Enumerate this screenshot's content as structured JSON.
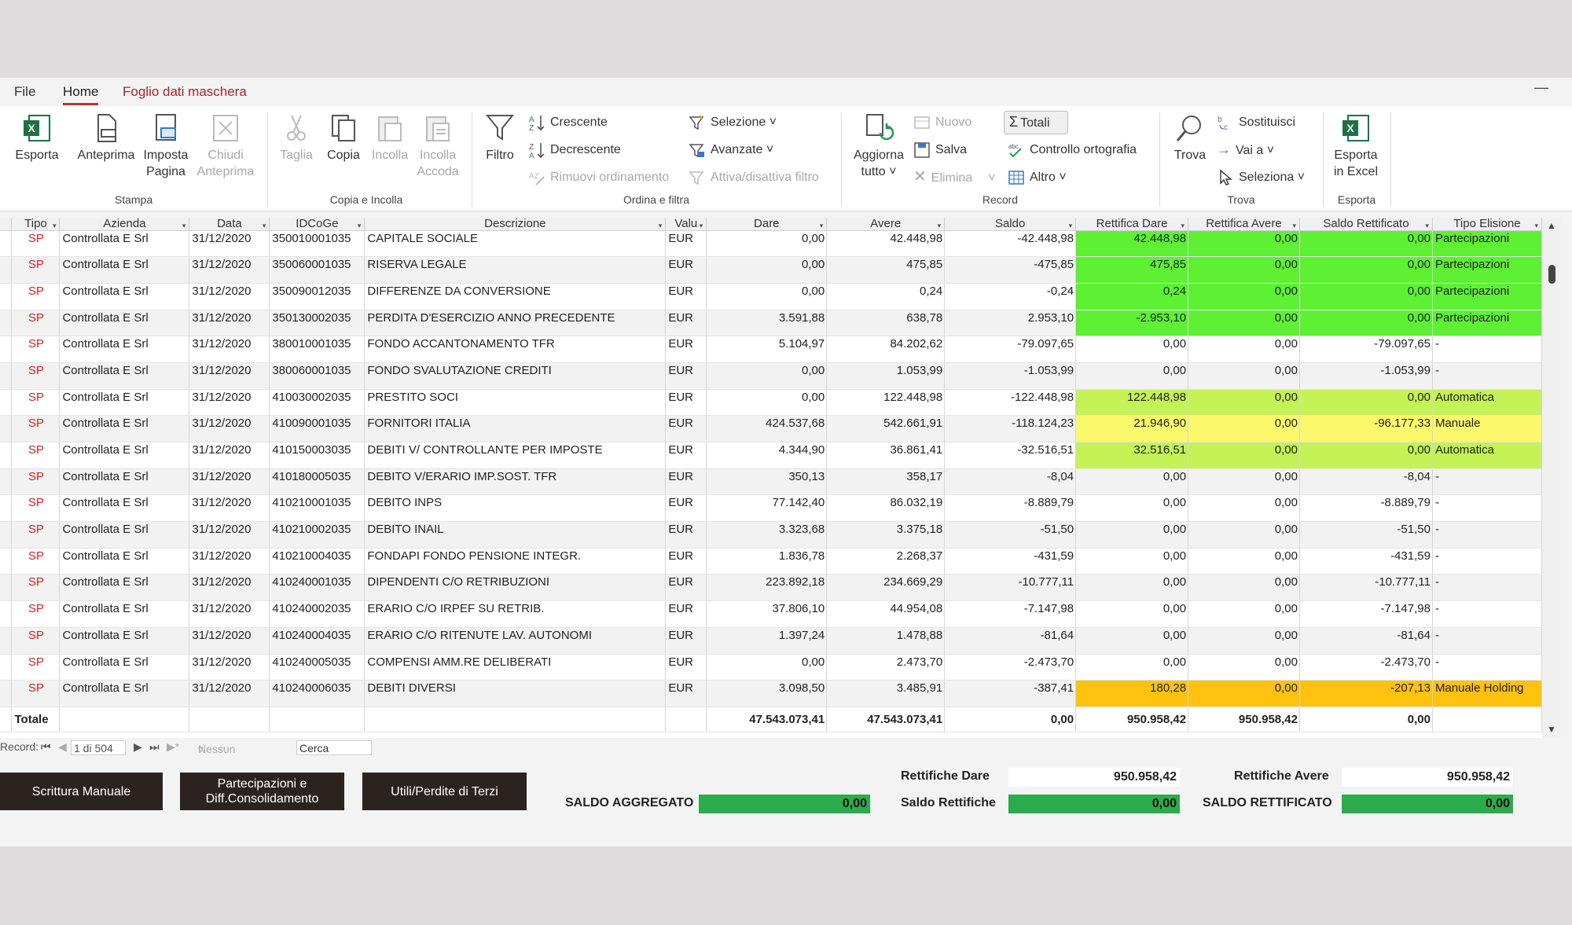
{
  "menubar": {
    "file": "File",
    "home": "Home",
    "foglio": "Foglio dati maschera"
  },
  "ribbon": {
    "stampa": {
      "group": "Stampa",
      "esporta": "Esporta",
      "anteprima": "Anteprima",
      "imposta": "Imposta Pagina",
      "chiudi": "Chiudi Anteprima"
    },
    "copia": {
      "group": "Copia e Incolla",
      "taglia": "Taglia",
      "copia": "Copia",
      "incolla": "Incolla",
      "incolla_accoda": "Incolla Accoda"
    },
    "ordina": {
      "group": "Ordina e filtra",
      "filtro": "Filtro",
      "crescente": "Crescente",
      "decrescente": "Decrescente",
      "rimuovi": "Rimuovi ordinamento",
      "selezione": "Selezione",
      "avanzate": "Avanzate",
      "attiva": "Attiva/disattiva filtro"
    },
    "record": {
      "group": "Record",
      "aggiorna": "Aggiorna tutto",
      "nuovo": "Nuovo",
      "salva": "Salva",
      "elimina": "Elimina",
      "totali": "Totali",
      "controllo": "Controllo ortografia",
      "altro": "Altro"
    },
    "trova": {
      "group": "Trova",
      "trova": "Trova",
      "sostituisci": "Sostituisci",
      "vai": "Vai a",
      "seleziona": "Seleziona"
    },
    "esporta": {
      "group": "Esporta",
      "excel": "Esporta in Excel"
    }
  },
  "grid": {
    "columns": [
      "Tipo",
      "Azienda",
      "Data",
      "IDCoGe",
      "Descrizione",
      "Valu",
      "Dare",
      "Avere",
      "Saldo",
      "Rettifica Dare",
      "Rettifica Avere",
      "Saldo Rettificato",
      "Tipo Elisione"
    ],
    "rows": [
      [
        "SP",
        "Controllata E Srl",
        "31/12/2020",
        "350010001035",
        "CAPITALE SOCIALE",
        "EUR",
        "0,00",
        "42.448,98",
        "-42.448,98",
        "42.448,98",
        "0,00",
        "0,00",
        "Partecipazioni"
      ],
      [
        "SP",
        "Controllata E Srl",
        "31/12/2020",
        "350060001035",
        "RISERVA LEGALE",
        "EUR",
        "0,00",
        "475,85",
        "-475,85",
        "475,85",
        "0,00",
        "0,00",
        "Partecipazioni"
      ],
      [
        "SP",
        "Controllata E Srl",
        "31/12/2020",
        "350090012035",
        "DIFFERENZE DA CONVERSIONE",
        "EUR",
        "0,00",
        "0,24",
        "-0,24",
        "0,24",
        "0,00",
        "0,00",
        "Partecipazioni"
      ],
      [
        "SP",
        "Controllata E Srl",
        "31/12/2020",
        "350130002035",
        "PERDITA D'ESERCIZIO ANNO PRECEDENTE",
        "EUR",
        "3.591,88",
        "638,78",
        "2.953,10",
        "-2.953,10",
        "0,00",
        "0,00",
        "Partecipazioni"
      ],
      [
        "SP",
        "Controllata E Srl",
        "31/12/2020",
        "380010001035",
        "FONDO ACCANTONAMENTO TFR",
        "EUR",
        "5.104,97",
        "84.202,62",
        "-79.097,65",
        "0,00",
        "0,00",
        "-79.097,65",
        "-"
      ],
      [
        "SP",
        "Controllata E Srl",
        "31/12/2020",
        "380060001035",
        "FONDO SVALUTAZIONE CREDITI",
        "EUR",
        "0,00",
        "1.053,99",
        "-1.053,99",
        "0,00",
        "0,00",
        "-1.053,99",
        "-"
      ],
      [
        "SP",
        "Controllata E Srl",
        "31/12/2020",
        "410030002035",
        "PRESTITO SOCI",
        "EUR",
        "0,00",
        "122.448,98",
        "-122.448,98",
        "122.448,98",
        "0,00",
        "0,00",
        "Automatica"
      ],
      [
        "SP",
        "Controllata E Srl",
        "31/12/2020",
        "410090001035",
        "FORNITORI ITALIA",
        "EUR",
        "424.537,68",
        "542.661,91",
        "-118.124,23",
        "21.946,90",
        "0,00",
        "-96.177,33",
        "Manuale"
      ],
      [
        "SP",
        "Controllata E Srl",
        "31/12/2020",
        "410150003035",
        "DEBITI V/ CONTROLLANTE PER IMPOSTE",
        "EUR",
        "4.344,90",
        "36.861,41",
        "-32.516,51",
        "32.516,51",
        "0,00",
        "0,00",
        "Automatica"
      ],
      [
        "SP",
        "Controllata E Srl",
        "31/12/2020",
        "410180005035",
        "DEBITO V/ERARIO IMP.SOST. TFR",
        "EUR",
        "350,13",
        "358,17",
        "-8,04",
        "0,00",
        "0,00",
        "-8,04",
        "-"
      ],
      [
        "SP",
        "Controllata E Srl",
        "31/12/2020",
        "410210001035",
        "DEBITO INPS",
        "EUR",
        "77.142,40",
        "86.032,19",
        "-8.889,79",
        "0,00",
        "0,00",
        "-8.889,79",
        "-"
      ],
      [
        "SP",
        "Controllata E Srl",
        "31/12/2020",
        "410210002035",
        "DEBITO INAIL",
        "EUR",
        "3.323,68",
        "3.375,18",
        "-51,50",
        "0,00",
        "0,00",
        "-51,50",
        "-"
      ],
      [
        "SP",
        "Controllata E Srl",
        "31/12/2020",
        "410210004035",
        "FONDAPI FONDO PENSIONE INTEGR.",
        "EUR",
        "1.836,78",
        "2.268,37",
        "-431,59",
        "0,00",
        "0,00",
        "-431,59",
        "-"
      ],
      [
        "SP",
        "Controllata E Srl",
        "31/12/2020",
        "410240001035",
        "DIPENDENTI C/O RETRIBUZIONI",
        "EUR",
        "223.892,18",
        "234.669,29",
        "-10.777,11",
        "0,00",
        "0,00",
        "-10.777,11",
        "-"
      ],
      [
        "SP",
        "Controllata E Srl",
        "31/12/2020",
        "410240002035",
        "ERARIO C/O IRPEF SU RETRIB.",
        "EUR",
        "37.806,10",
        "44.954,08",
        "-7.147,98",
        "0,00",
        "0,00",
        "-7.147,98",
        "-"
      ],
      [
        "SP",
        "Controllata E Srl",
        "31/12/2020",
        "410240004035",
        "ERARIO C/O RITENUTE LAV. AUTONOMI",
        "EUR",
        "1.397,24",
        "1.478,88",
        "-81,64",
        "0,00",
        "0,00",
        "-81,64",
        "-"
      ],
      [
        "SP",
        "Controllata E Srl",
        "31/12/2020",
        "410240005035",
        "COMPENSI AMM.RE DELIBERATI",
        "EUR",
        "0,00",
        "2.473,70",
        "-2.473,70",
        "0,00",
        "0,00",
        "-2.473,70",
        "-"
      ],
      [
        "SP",
        "Controllata E Srl",
        "31/12/2020",
        "410240006035",
        "DEBITI DIVERSI",
        "EUR",
        "3.098,50",
        "3.485,91",
        "-387,41",
        "180,28",
        "0,00",
        "-207,13",
        "Manuale Holding"
      ]
    ],
    "highlights": {
      "Partecipazioni": "#5df033",
      "Automatica": "#c5f255",
      "Manuale": "#fbf86b",
      "Manuale Holding": "#ffc20e"
    },
    "totals": {
      "label": "Totale",
      "dare": "47.543.073,41",
      "avere": "47.543.073,41",
      "saldo": "0,00",
      "rett_dare": "950.958,42",
      "rett_avere": "950.958,42",
      "saldo_rett": "0,00"
    }
  },
  "navbar": {
    "record": "Record:",
    "position": "1 di 504",
    "nofilter": "Nessun filtro",
    "search": "Cerca"
  },
  "footer": {
    "btn_manuale": "Scrittura Manuale",
    "btn_partecipazioni": "Partecipazioni e Diff.Consolidamento",
    "btn_utili": "Utili/Perdite di Terzi",
    "saldo_aggregato_label": "SALDO AGGREGATO",
    "saldo_aggregato": "0,00",
    "rett_dare_label": "Rettifiche Dare",
    "rett_dare": "950.958,42",
    "saldo_rett_label": "Saldo Rettifiche",
    "saldo_rett": "0,00",
    "rett_avere_label": "Rettifiche Avere",
    "rett_avere": "950.958,42",
    "saldo_rettificato_label": "SALDO RETTIFICATO",
    "saldo_rettificato": "0,00"
  }
}
